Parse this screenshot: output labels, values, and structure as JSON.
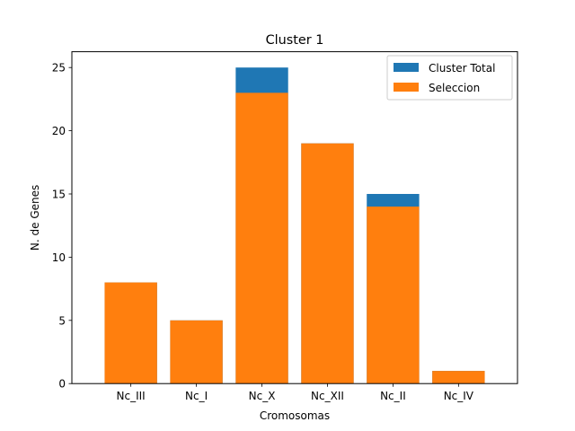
{
  "chart_data": {
    "type": "bar",
    "title": "Cluster 1",
    "xlabel": "Cromosomas",
    "ylabel": "N. de Genes",
    "categories": [
      "Nc_III",
      "Nc_I",
      "Nc_X",
      "Nc_XII",
      "Nc_II",
      "Nc_IV"
    ],
    "series": [
      {
        "name": "Cluster Total",
        "values": [
          8,
          5,
          25,
          19,
          15,
          1
        ],
        "color": "#1f77b4"
      },
      {
        "name": "Seleccion",
        "values": [
          8,
          5,
          23,
          19,
          14,
          1
        ],
        "color": "#ff7f0e"
      }
    ],
    "ylim": [
      0,
      26.25
    ],
    "yticks": [
      0,
      5,
      10,
      15,
      20,
      25
    ],
    "grid": false,
    "legend_position": "top-right"
  }
}
